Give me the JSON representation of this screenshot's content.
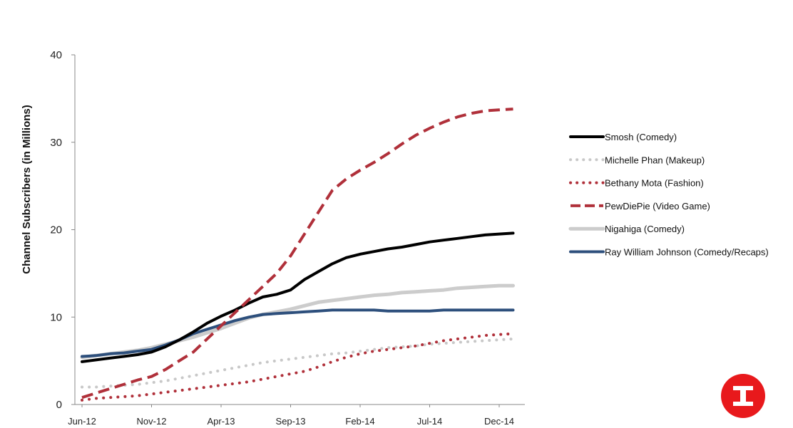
{
  "chart_data": {
    "type": "line",
    "ylabel": "Channel Subscribers (in Millions)",
    "xlabel": "",
    "ylim": [
      0,
      40
    ],
    "yticks": [
      0,
      10,
      20,
      30,
      40
    ],
    "x": [
      "Jun-12",
      "Jul-12",
      "Aug-12",
      "Sep-12",
      "Oct-12",
      "Nov-12",
      "Dec-12",
      "Jan-13",
      "Feb-13",
      "Mar-13",
      "Apr-13",
      "May-13",
      "Jun-13",
      "Jul-13",
      "Aug-13",
      "Sep-13",
      "Oct-13",
      "Nov-13",
      "Dec-13",
      "Jan-14",
      "Feb-14",
      "Mar-14",
      "Apr-14",
      "May-14",
      "Jun-14",
      "Jul-14",
      "Aug-14",
      "Sep-14",
      "Oct-14",
      "Nov-14",
      "Dec-14",
      "Jan-15"
    ],
    "xtick_labels": [
      "Jun-12",
      "Nov-12",
      "Apr-13",
      "Sep-13",
      "Feb-14",
      "Jul-14",
      "Dec-14"
    ],
    "grid": false,
    "legend_position": "right",
    "series": [
      {
        "name": "Smosh (Comedy)",
        "color": "#000000",
        "style": "solid",
        "values": [
          4.9,
          5.1,
          5.3,
          5.5,
          5.7,
          6.0,
          6.6,
          7.4,
          8.3,
          9.3,
          10.1,
          10.8,
          11.6,
          12.3,
          12.6,
          13.1,
          14.3,
          15.2,
          16.1,
          16.8,
          17.2,
          17.5,
          17.8,
          18.0,
          18.3,
          18.6,
          18.8,
          19.0,
          19.2,
          19.4,
          19.5,
          19.6
        ]
      },
      {
        "name": "Michelle Phan (Makeup)",
        "color": "#c8c8c8",
        "style": "dotted",
        "values": [
          2.0,
          2.0,
          2.1,
          2.2,
          2.3,
          2.5,
          2.7,
          3.0,
          3.3,
          3.6,
          3.9,
          4.2,
          4.5,
          4.8,
          5.0,
          5.2,
          5.4,
          5.6,
          5.8,
          5.9,
          6.1,
          6.3,
          6.5,
          6.6,
          6.7,
          6.9,
          7.0,
          7.1,
          7.2,
          7.3,
          7.4,
          7.5
        ]
      },
      {
        "name": "Bethany Mota (Fashion)",
        "color": "#b0303a",
        "style": "dotted",
        "values": [
          0.5,
          0.7,
          0.8,
          0.9,
          1.0,
          1.2,
          1.4,
          1.6,
          1.8,
          2.0,
          2.2,
          2.4,
          2.6,
          2.9,
          3.2,
          3.5,
          3.8,
          4.3,
          4.9,
          5.4,
          5.8,
          6.1,
          6.3,
          6.5,
          6.7,
          7.0,
          7.3,
          7.5,
          7.7,
          7.9,
          8.0,
          8.1
        ]
      },
      {
        "name": "PewDiePie (Video Game)",
        "color": "#b0303a",
        "style": "dashed",
        "values": [
          0.8,
          1.3,
          1.8,
          2.3,
          2.8,
          3.2,
          4.0,
          5.0,
          6.0,
          7.5,
          9.0,
          10.5,
          12.0,
          13.5,
          15.0,
          17.0,
          19.5,
          22.0,
          24.5,
          25.8,
          26.8,
          27.7,
          28.7,
          29.8,
          30.8,
          31.6,
          32.3,
          32.9,
          33.3,
          33.6,
          33.7,
          33.8
        ]
      },
      {
        "name": "Nigahiga (Comedy)",
        "color": "#cccccc",
        "style": "solid",
        "values": [
          5.4,
          5.6,
          5.8,
          6.0,
          6.2,
          6.5,
          6.9,
          7.3,
          7.7,
          8.2,
          8.7,
          9.3,
          9.9,
          10.3,
          10.6,
          10.9,
          11.3,
          11.7,
          11.9,
          12.1,
          12.3,
          12.5,
          12.6,
          12.8,
          12.9,
          13.0,
          13.1,
          13.3,
          13.4,
          13.5,
          13.6,
          13.6
        ]
      },
      {
        "name": "Ray William Johnson (Comedy/Recaps)",
        "color": "#2d4f7c",
        "style": "solid",
        "values": [
          5.5,
          5.6,
          5.8,
          5.9,
          6.1,
          6.3,
          6.8,
          7.4,
          8.1,
          8.6,
          9.1,
          9.6,
          10.0,
          10.3,
          10.4,
          10.5,
          10.6,
          10.7,
          10.8,
          10.8,
          10.8,
          10.8,
          10.7,
          10.7,
          10.7,
          10.7,
          10.8,
          10.8,
          10.8,
          10.8,
          10.8,
          10.8
        ]
      }
    ]
  },
  "logo": {
    "color": "#e8191c",
    "icon": "logo-i-icon"
  }
}
